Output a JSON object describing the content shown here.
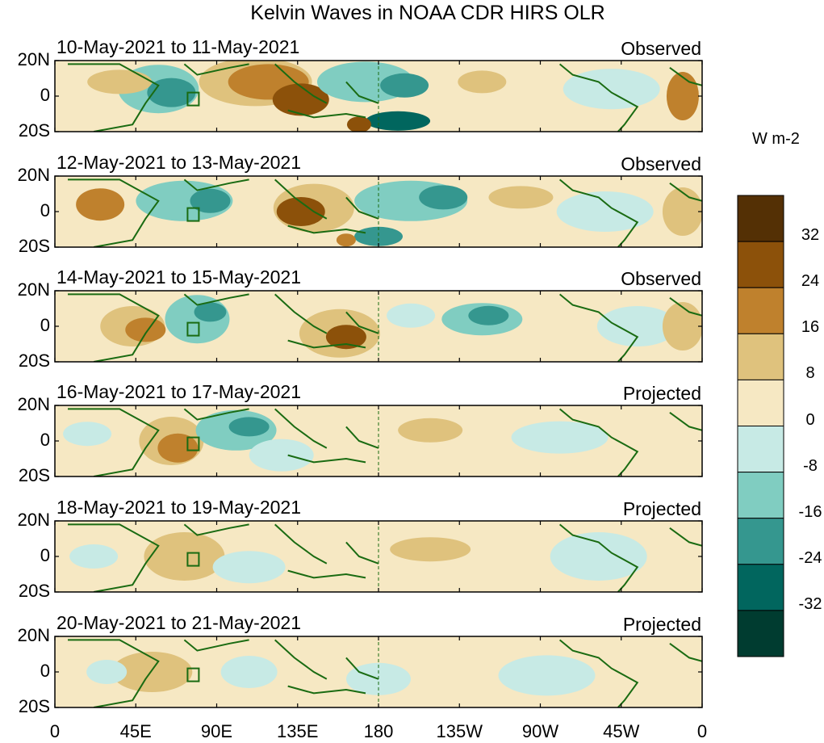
{
  "title": "Kelvin Waves in NOAA CDR HIRS OLR",
  "panels": [
    {
      "date": "10-May-2021 to 11-May-2021",
      "status": "Observed"
    },
    {
      "date": "12-May-2021 to 13-May-2021",
      "status": "Observed"
    },
    {
      "date": "14-May-2021 to 15-May-2021",
      "status": "Observed"
    },
    {
      "date": "16-May-2021 to 17-May-2021",
      "status": "Projected"
    },
    {
      "date": "18-May-2021 to 19-May-2021",
      "status": "Projected"
    },
    {
      "date": "20-May-2021 to 21-May-2021",
      "status": "Projected"
    }
  ],
  "lat_labels": [
    "20N",
    "0",
    "20S"
  ],
  "lon_labels": [
    "0",
    "45E",
    "90E",
    "135E",
    "180",
    "135W",
    "90W",
    "45W",
    "0"
  ],
  "colorbar": {
    "unit": "W m-2",
    "labels": [
      "32",
      "24",
      "16",
      "8",
      "0",
      "-8",
      "-16",
      "-24",
      "-32"
    ],
    "colors": [
      "#543005",
      "#8c510a",
      "#bf812d",
      "#dfc27d",
      "#f6e8c3",
      "#c7eae5",
      "#80cdc1",
      "#35978f",
      "#01665e",
      "#003c30"
    ]
  }
}
